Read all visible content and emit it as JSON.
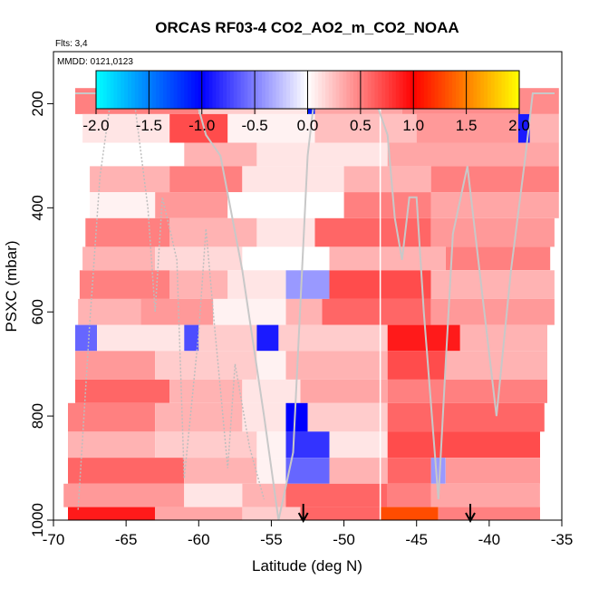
{
  "chart_data": {
    "type": "heatmap",
    "title": "ORCAS RF03-4 CO2_AO2_m_CO2_NOAA",
    "subtitle": "Flts: 3,4",
    "annotation": "MMDD: 0121,0123",
    "xlabel": "Latitude (deg N)",
    "ylabel": "PSXC (mbar)",
    "xlim": [
      -70,
      -35
    ],
    "ylim": [
      1000,
      100
    ],
    "x_ticks": [
      -70,
      -65,
      -60,
      -55,
      -50,
      -45,
      -40,
      -35
    ],
    "y_ticks": [
      200,
      400,
      600,
      800,
      1000
    ],
    "colorbar": {
      "range": [
        -2.0,
        2.0
      ],
      "ticks": [
        "-2.0",
        "-1.5",
        "-1.0",
        "-0.5",
        "0.0",
        "0.5",
        "1.0",
        "1.5",
        "2.0"
      ],
      "colors": [
        "#00ffff",
        "#0000ff",
        "#ffffff",
        "#ff0000",
        "#ffff00"
      ]
    },
    "bands": [
      {
        "p_top": 170,
        "p_bottom": 220,
        "lat_start": -68.5,
        "lat_end": -35.2,
        "segments": [
          {
            "lat": [
              -68.5,
              -60.0
            ],
            "value": 0.5
          },
          {
            "lat": [
              -60.0,
              -56.0
            ],
            "value": 0.2
          },
          {
            "lat": [
              -56.0,
              -52.5
            ],
            "value": 0.1
          },
          {
            "lat": [
              -52.5,
              -52.0
            ],
            "value": -1.1
          },
          {
            "lat": [
              -52.0,
              -46.0
            ],
            "value": 0.35
          },
          {
            "lat": [
              -46.0,
              -35.2
            ],
            "value": 0.45
          }
        ]
      },
      {
        "p_top": 220,
        "p_bottom": 275,
        "lat_start": -68.0,
        "lat_end": -35.2,
        "segments": [
          {
            "lat": [
              -68.0,
              -62.0
            ],
            "value": 0.1
          },
          {
            "lat": [
              -62.0,
              -58.0
            ],
            "value": 0.7
          },
          {
            "lat": [
              -58.0,
              -52.0
            ],
            "value": 0.05
          },
          {
            "lat": [
              -52.0,
              -45.0
            ],
            "value": 0.25
          },
          {
            "lat": [
              -45.0,
              -38.0
            ],
            "value": 0.4
          },
          {
            "lat": [
              -38.0,
              -37.2
            ],
            "value": -0.9
          },
          {
            "lat": [
              -37.2,
              -35.2
            ],
            "value": 0.3
          }
        ]
      },
      {
        "p_top": 275,
        "p_bottom": 320,
        "lat_start": -67.5,
        "lat_end": -35.2,
        "segments": [
          {
            "lat": [
              -67.5,
              -61.0
            ],
            "value": 0.0
          },
          {
            "lat": [
              -61.0,
              -56.0
            ],
            "value": 0.3
          },
          {
            "lat": [
              -56.0,
              -47.0
            ],
            "value": 0.1
          },
          {
            "lat": [
              -47.0,
              -35.2
            ],
            "value": 0.35
          }
        ]
      },
      {
        "p_top": 320,
        "p_bottom": 370,
        "lat_start": -67.5,
        "lat_end": -35.2,
        "segments": [
          {
            "lat": [
              -67.5,
              -62.0
            ],
            "value": 0.3
          },
          {
            "lat": [
              -62.0,
              -57.0
            ],
            "value": 0.5
          },
          {
            "lat": [
              -57.0,
              -50.0
            ],
            "value": 0.1
          },
          {
            "lat": [
              -50.0,
              -44.0
            ],
            "value": 0.3
          },
          {
            "lat": [
              -44.0,
              -35.2
            ],
            "value": 0.5
          }
        ]
      },
      {
        "p_top": 370,
        "p_bottom": 420,
        "lat_start": -67.5,
        "lat_end": -35.2,
        "segments": [
          {
            "lat": [
              -67.5,
              -63.0
            ],
            "value": 0.05
          },
          {
            "lat": [
              -63.0,
              -58.0
            ],
            "value": 0.4
          },
          {
            "lat": [
              -58.0,
              -50.0
            ],
            "value": 0.0
          },
          {
            "lat": [
              -50.0,
              -44.0
            ],
            "value": 0.5
          },
          {
            "lat": [
              -44.0,
              -35.2
            ],
            "value": 0.35
          }
        ]
      },
      {
        "p_top": 420,
        "p_bottom": 475,
        "lat_start": -67.8,
        "lat_end": -35.5,
        "segments": [
          {
            "lat": [
              -67.8,
              -62.0
            ],
            "value": 0.5
          },
          {
            "lat": [
              -62.0,
              -56.0
            ],
            "value": 0.3
          },
          {
            "lat": [
              -56.0,
              -52.0
            ],
            "value": 0.1
          },
          {
            "lat": [
              -52.0,
              -44.0
            ],
            "value": 0.6
          },
          {
            "lat": [
              -44.0,
              -35.5
            ],
            "value": 0.4
          }
        ]
      },
      {
        "p_top": 475,
        "p_bottom": 520,
        "lat_start": -68.0,
        "lat_end": -35.8,
        "segments": [
          {
            "lat": [
              -68.0,
              -63.0
            ],
            "value": 0.3
          },
          {
            "lat": [
              -63.0,
              -57.0
            ],
            "value": 0.15
          },
          {
            "lat": [
              -57.0,
              -51.0
            ],
            "value": 0.0
          },
          {
            "lat": [
              -51.0,
              -43.0
            ],
            "value": 0.3
          },
          {
            "lat": [
              -43.0,
              -35.8
            ],
            "value": 0.5
          }
        ]
      },
      {
        "p_top": 520,
        "p_bottom": 575,
        "lat_start": -68.2,
        "lat_end": -35.5,
        "segments": [
          {
            "lat": [
              -68.2,
              -62.0
            ],
            "value": 0.5
          },
          {
            "lat": [
              -62.0,
              -58.0
            ],
            "value": 0.3
          },
          {
            "lat": [
              -58.0,
              -54.0
            ],
            "value": 0.1
          },
          {
            "lat": [
              -54.0,
              -51.0
            ],
            "value": -0.4
          },
          {
            "lat": [
              -51.0,
              -44.0
            ],
            "value": 0.7
          },
          {
            "lat": [
              -44.0,
              -35.5
            ],
            "value": 0.3
          }
        ]
      },
      {
        "p_top": 575,
        "p_bottom": 625,
        "lat_start": -68.3,
        "lat_end": -35.5,
        "segments": [
          {
            "lat": [
              -68.3,
              -64.0
            ],
            "value": 0.3
          },
          {
            "lat": [
              -64.0,
              -59.0
            ],
            "value": 0.4
          },
          {
            "lat": [
              -59.0,
              -54.0
            ],
            "value": 0.05
          },
          {
            "lat": [
              -54.0,
              -51.5
            ],
            "value": 0.3
          },
          {
            "lat": [
              -51.5,
              -44.0
            ],
            "value": 0.6
          },
          {
            "lat": [
              -44.0,
              -35.5
            ],
            "value": 0.4
          }
        ]
      },
      {
        "p_top": 625,
        "p_bottom": 675,
        "lat_start": -68.5,
        "lat_end": -36.0,
        "segments": [
          {
            "lat": [
              -68.5,
              -67.0
            ],
            "value": -0.6
          },
          {
            "lat": [
              -67.0,
              -61.0
            ],
            "value": 0.1
          },
          {
            "lat": [
              -61.0,
              -60.0
            ],
            "value": -0.7
          },
          {
            "lat": [
              -60.0,
              -56.0
            ],
            "value": 0.2
          },
          {
            "lat": [
              -56.0,
              -54.5
            ],
            "value": -0.9
          },
          {
            "lat": [
              -54.5,
              -47.0
            ],
            "value": 0.2
          },
          {
            "lat": [
              -47.0,
              -42.0
            ],
            "value": 0.9
          },
          {
            "lat": [
              -42.0,
              -36.0
            ],
            "value": 0.3
          }
        ]
      },
      {
        "p_top": 675,
        "p_bottom": 730,
        "lat_start": -68.5,
        "lat_end": -36.0,
        "segments": [
          {
            "lat": [
              -68.5,
              -63.0
            ],
            "value": 0.4
          },
          {
            "lat": [
              -63.0,
              -56.0
            ],
            "value": 0.2
          },
          {
            "lat": [
              -56.0,
              -54.0
            ],
            "value": 0.05
          },
          {
            "lat": [
              -54.0,
              -47.0
            ],
            "value": 0.3
          },
          {
            "lat": [
              -47.0,
              -43.0
            ],
            "value": 0.7
          },
          {
            "lat": [
              -43.0,
              -36.0
            ],
            "value": 0.3
          }
        ]
      },
      {
        "p_top": 730,
        "p_bottom": 775,
        "lat_start": -68.5,
        "lat_end": -36.0,
        "segments": [
          {
            "lat": [
              -68.5,
              -62.0
            ],
            "value": 0.6
          },
          {
            "lat": [
              -62.0,
              -57.0
            ],
            "value": 0.3
          },
          {
            "lat": [
              -57.0,
              -53.0
            ],
            "value": 0.1
          },
          {
            "lat": [
              -53.0,
              -47.0
            ],
            "value": 0.35
          },
          {
            "lat": [
              -47.0,
              -36.0
            ],
            "value": 0.5
          }
        ]
      },
      {
        "p_top": 775,
        "p_bottom": 830,
        "lat_start": -69.0,
        "lat_end": -36.2,
        "segments": [
          {
            "lat": [
              -69.0,
              -63.0
            ],
            "value": 0.5
          },
          {
            "lat": [
              -63.0,
              -57.0
            ],
            "value": 0.3
          },
          {
            "lat": [
              -57.0,
              -54.0
            ],
            "value": 0.1
          },
          {
            "lat": [
              -54.0,
              -52.5
            ],
            "value": -1.0
          },
          {
            "lat": [
              -52.5,
              -47.0
            ],
            "value": 0.2
          },
          {
            "lat": [
              -47.0,
              -36.2
            ],
            "value": 0.6
          }
        ]
      },
      {
        "p_top": 830,
        "p_bottom": 880,
        "lat_start": -69.0,
        "lat_end": -36.5,
        "segments": [
          {
            "lat": [
              -69.0,
              -63.0
            ],
            "value": 0.3
          },
          {
            "lat": [
              -63.0,
              -56.0
            ],
            "value": 0.2
          },
          {
            "lat": [
              -56.0,
              -54.0
            ],
            "value": 0.05
          },
          {
            "lat": [
              -54.0,
              -51.0
            ],
            "value": -0.8
          },
          {
            "lat": [
              -51.0,
              -47.0
            ],
            "value": 0.1
          },
          {
            "lat": [
              -47.0,
              -36.5
            ],
            "value": 0.7
          }
        ]
      },
      {
        "p_top": 880,
        "p_bottom": 930,
        "lat_start": -69.0,
        "lat_end": -36.5,
        "segments": [
          {
            "lat": [
              -69.0,
              -61.0
            ],
            "value": 0.6
          },
          {
            "lat": [
              -61.0,
              -56.0
            ],
            "value": 0.3
          },
          {
            "lat": [
              -56.0,
              -54.0
            ],
            "value": 0.05
          },
          {
            "lat": [
              -54.0,
              -51.0
            ],
            "value": -0.6
          },
          {
            "lat": [
              -51.0,
              -47.0
            ],
            "value": 0.3
          },
          {
            "lat": [
              -47.0,
              -44.0
            ],
            "value": 0.6
          },
          {
            "lat": [
              -44.0,
              -43.0
            ],
            "value": -0.4
          },
          {
            "lat": [
              -43.0,
              -36.5
            ],
            "value": 0.4
          }
        ]
      },
      {
        "p_top": 930,
        "p_bottom": 975,
        "lat_start": -69.3,
        "lat_end": -36.5,
        "segments": [
          {
            "lat": [
              -69.3,
              -61.0
            ],
            "value": 0.4
          },
          {
            "lat": [
              -61.0,
              -57.0
            ],
            "value": 0.1
          },
          {
            "lat": [
              -57.0,
              -54.0
            ],
            "value": 0.3
          },
          {
            "lat": [
              -54.0,
              -47.0
            ],
            "value": 0.6
          },
          {
            "lat": [
              -47.0,
              -44.0
            ],
            "value": 0.5
          },
          {
            "lat": [
              -44.0,
              -36.5
            ],
            "value": 0.35
          }
        ]
      },
      {
        "p_top": 975,
        "p_bottom": 1000,
        "lat_start": -69.0,
        "lat_end": -36.5,
        "segments": [
          {
            "lat": [
              -69.0,
              -63.0
            ],
            "value": 0.9
          },
          {
            "lat": [
              -63.0,
              -57.0
            ],
            "value": 0.35
          },
          {
            "lat": [
              -57.0,
              -53.0
            ],
            "value": 0.2
          },
          {
            "lat": [
              -53.0,
              -47.5
            ],
            "value": 0.6
          },
          {
            "lat": [
              -47.5,
              -43.5
            ],
            "value": 1.3
          },
          {
            "lat": [
              -43.5,
              -36.5
            ],
            "value": 0.5
          }
        ]
      }
    ],
    "flight_track": [
      [
        -68.5,
        180
      ],
      [
        -67.0,
        180
      ],
      [
        -65.0,
        180
      ],
      [
        -61.0,
        180
      ],
      [
        -60.3,
        180
      ],
      [
        -59.5,
        260
      ],
      [
        -58.5,
        300
      ],
      [
        -57.0,
        520
      ],
      [
        -55.5,
        800
      ],
      [
        -54.5,
        1000
      ],
      [
        -53.5,
        870
      ],
      [
        -52.5,
        300
      ],
      [
        -52.0,
        180
      ],
      [
        -50.0,
        180
      ],
      [
        -48.0,
        180
      ],
      [
        -47.0,
        260
      ],
      [
        -46.5,
        420
      ],
      [
        -46.0,
        500
      ],
      [
        -45.5,
        380
      ],
      [
        -45.0,
        380
      ],
      [
        -44.5,
        600
      ],
      [
        -43.5,
        960
      ],
      [
        -43.0,
        700
      ],
      [
        -42.5,
        450
      ],
      [
        -41.5,
        320
      ],
      [
        -40.5,
        560
      ],
      [
        -39.5,
        800
      ],
      [
        -38.5,
        520
      ],
      [
        -37.5,
        300
      ],
      [
        -37.0,
        180
      ],
      [
        -35.5,
        180
      ]
    ],
    "flight_track_2": [
      [
        -68.3,
        980
      ],
      [
        -67.5,
        620
      ],
      [
        -66.8,
        340
      ],
      [
        -66.0,
        180
      ],
      [
        -64.5,
        180
      ],
      [
        -63.5,
        400
      ],
      [
        -63.0,
        600
      ],
      [
        -62.5,
        380
      ],
      [
        -61.5,
        500
      ],
      [
        -61.0,
        920
      ],
      [
        -60.0,
        640
      ],
      [
        -59.5,
        440
      ],
      [
        -59.0,
        600
      ],
      [
        -58.0,
        900
      ],
      [
        -57.5,
        700
      ],
      [
        -56.5,
        860
      ],
      [
        -55.5,
        960
      ]
    ],
    "vertical_line_lat": -47.5,
    "arrows_lat": [
      -52.8,
      -41.3
    ]
  }
}
